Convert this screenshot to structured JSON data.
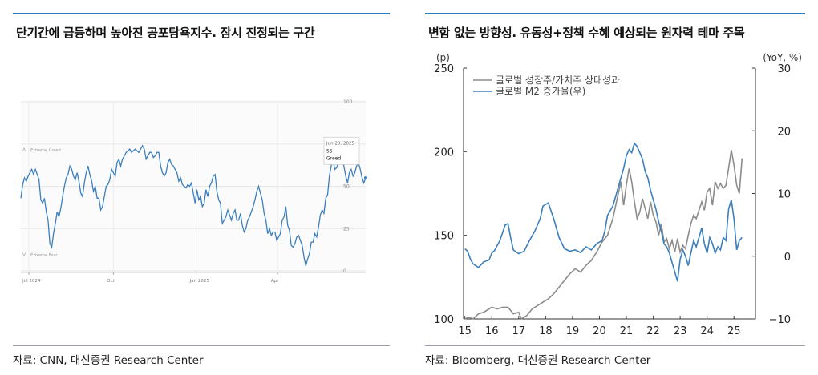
{
  "left": {
    "title": "단기간에 급등하며 높아진 공포탐욕지수. 잠시 진정되는 구간",
    "source": "자료: CNN, 대신증권 Research Center",
    "annotations": {
      "extreme_greed": "Extreme Greed",
      "extreme_fear": "Extreme Fear",
      "tooltip_date": "Jun 20, 2025",
      "tooltip_value": "55",
      "tooltip_label": "Greed"
    }
  },
  "right": {
    "title": "변함 없는 방향성. 유동성+정책 수혜 예상되는 원자력 테마 주목",
    "source": "자료: Bloomberg, 대신증권 Research Center",
    "left_unit": "(p)",
    "right_unit": "(YoY, %)"
  },
  "colors": {
    "blue_line": "#3b7fbf",
    "gray_line": "#8c8c8c",
    "accent_rule": "#2e7bbf"
  },
  "chart_data": [
    {
      "type": "line",
      "x_ticks": [
        "Jul 2024",
        "Oct",
        "Jan 2025",
        "Apr"
      ],
      "y_ticks": [
        "100",
        "75",
        "50",
        "25",
        "0"
      ],
      "ylim": [
        0,
        100
      ],
      "grid": true,
      "series": [
        {
          "values": [
            43,
            51,
            55,
            53,
            56,
            58,
            60,
            57,
            60,
            57,
            54,
            42,
            40,
            43,
            35,
            30,
            16,
            14,
            22,
            28,
            35,
            32,
            37,
            44,
            50,
            55,
            57,
            62,
            60,
            56,
            54,
            58,
            53,
            46,
            44,
            52,
            58,
            62,
            57,
            53,
            47,
            50,
            43,
            43,
            36,
            38,
            44,
            50,
            51,
            54,
            60,
            58,
            56,
            64,
            66,
            62,
            66,
            68,
            70,
            71,
            72,
            70,
            71,
            72,
            71,
            70,
            72,
            74,
            72,
            66,
            68,
            70,
            70,
            67,
            68,
            70,
            70,
            62,
            58,
            56,
            58,
            64,
            66,
            63,
            62,
            60,
            58,
            53,
            55,
            51,
            50,
            49,
            51,
            50,
            52,
            46,
            40,
            48,
            42,
            44,
            38,
            40,
            48,
            44,
            50,
            52,
            56,
            57,
            47,
            42,
            40,
            28,
            30,
            32,
            36,
            33,
            30,
            34,
            36,
            30,
            30,
            34,
            27,
            23,
            25,
            30,
            32,
            35,
            38,
            42,
            47,
            50,
            46,
            42,
            34,
            30,
            22,
            25,
            21,
            23,
            23,
            18,
            20,
            22,
            30,
            32,
            38,
            27,
            24,
            15,
            14,
            16,
            20,
            21,
            18,
            15,
            8,
            3,
            7,
            10,
            17,
            17,
            22,
            20,
            26,
            33,
            36,
            34,
            43,
            45,
            56,
            62,
            65,
            60,
            61,
            64,
            67,
            65,
            62,
            56,
            52,
            58,
            60,
            56,
            58,
            62,
            64,
            60,
            55,
            52,
            55
          ]
        }
      ]
    },
    {
      "type": "line",
      "x": [
        "15",
        "16",
        "17",
        "18",
        "19",
        "20",
        "21",
        "22",
        "23",
        "24",
        "25"
      ],
      "ylim": [
        100,
        250
      ],
      "y_ticks": [
        "250",
        "200",
        "150",
        "100"
      ],
      "y2lim": [
        -10,
        30
      ],
      "y2_ticks": [
        "30",
        "20",
        "10",
        "0",
        "−10"
      ],
      "xlim": [
        15,
        25.5
      ],
      "grid": false,
      "legend": "top-left",
      "series": [
        {
          "name": "글로벌 성장주/가치주 상대성과",
          "axis": "left",
          "points": [
            [
              15.0,
              100
            ],
            [
              15.15,
              101
            ],
            [
              15.3,
              100
            ],
            [
              15.5,
              103
            ],
            [
              15.7,
              104
            ],
            [
              16.0,
              107
            ],
            [
              16.2,
              106
            ],
            [
              16.4,
              107
            ],
            [
              16.6,
              107
            ],
            [
              16.8,
              103
            ],
            [
              17.0,
              104
            ],
            [
              17.1,
              100
            ],
            [
              17.3,
              102
            ],
            [
              17.5,
              106
            ],
            [
              17.7,
              108
            ],
            [
              17.9,
              110
            ],
            [
              18.1,
              112
            ],
            [
              18.3,
              115
            ],
            [
              18.5,
              119
            ],
            [
              18.7,
              123
            ],
            [
              18.9,
              127
            ],
            [
              19.1,
              130
            ],
            [
              19.3,
              128
            ],
            [
              19.5,
              132
            ],
            [
              19.7,
              135
            ],
            [
              19.9,
              140
            ],
            [
              20.1,
              146
            ],
            [
              20.3,
              150
            ],
            [
              20.5,
              160
            ],
            [
              20.7,
              175
            ],
            [
              20.8,
              182
            ],
            [
              20.9,
              168
            ],
            [
              21.0,
              180
            ],
            [
              21.1,
              190
            ],
            [
              21.2,
              182
            ],
            [
              21.3,
              170
            ],
            [
              21.4,
              160
            ],
            [
              21.5,
              164
            ],
            [
              21.6,
              172
            ],
            [
              21.7,
              166
            ],
            [
              21.8,
              160
            ],
            [
              21.9,
              170
            ],
            [
              22.0,
              162
            ],
            [
              22.1,
              158
            ],
            [
              22.2,
              150
            ],
            [
              22.3,
              157
            ],
            [
              22.4,
              146
            ],
            [
              22.5,
              148
            ],
            [
              22.6,
              142
            ],
            [
              22.7,
              147
            ],
            [
              22.8,
              140
            ],
            [
              22.9,
              148
            ],
            [
              23.0,
              140
            ],
            [
              23.1,
              144
            ],
            [
              23.2,
              142
            ],
            [
              23.3,
              150
            ],
            [
              23.4,
              157
            ],
            [
              23.5,
              162
            ],
            [
              23.6,
              160
            ],
            [
              23.7,
              165
            ],
            [
              23.8,
              170
            ],
            [
              23.9,
              165
            ],
            [
              24.0,
              176
            ],
            [
              24.1,
              178
            ],
            [
              24.2,
              168
            ],
            [
              24.3,
              182
            ],
            [
              24.4,
              178
            ],
            [
              24.5,
              181
            ],
            [
              24.6,
              178
            ],
            [
              24.7,
              180
            ],
            [
              24.8,
              190
            ],
            [
              24.9,
              201
            ],
            [
              25.0,
              192
            ],
            [
              25.1,
              180
            ],
            [
              25.2,
              175
            ],
            [
              25.3,
              196
            ]
          ]
        },
        {
          "name": "글로벌 M2 증가율(우)",
          "axis": "right",
          "points": [
            [
              15.0,
              1.2
            ],
            [
              15.1,
              0.8
            ],
            [
              15.2,
              -0.4
            ],
            [
              15.3,
              -1.2
            ],
            [
              15.5,
              -1.8
            ],
            [
              15.7,
              -0.9
            ],
            [
              15.9,
              -0.6
            ],
            [
              16.0,
              0.5
            ],
            [
              16.1,
              0.9
            ],
            [
              16.3,
              2.5
            ],
            [
              16.5,
              5.0
            ],
            [
              16.6,
              5.2
            ],
            [
              16.7,
              3.0
            ],
            [
              16.8,
              1.0
            ],
            [
              17.0,
              0.4
            ],
            [
              17.2,
              0.8
            ],
            [
              17.4,
              2.5
            ],
            [
              17.6,
              4.0
            ],
            [
              17.8,
              6.0
            ],
            [
              17.9,
              8.0
            ],
            [
              18.1,
              8.5
            ],
            [
              18.3,
              6.0
            ],
            [
              18.5,
              3.0
            ],
            [
              18.7,
              1.2
            ],
            [
              18.9,
              0.8
            ],
            [
              19.1,
              1.0
            ],
            [
              19.3,
              0.6
            ],
            [
              19.5,
              1.5
            ],
            [
              19.7,
              1.0
            ],
            [
              19.9,
              2.0
            ],
            [
              20.1,
              2.5
            ],
            [
              20.2,
              4.0
            ],
            [
              20.3,
              6.5
            ],
            [
              20.5,
              8.0
            ],
            [
              20.6,
              9.5
            ],
            [
              20.7,
              11.0
            ],
            [
              20.8,
              12.5
            ],
            [
              20.9,
              14.0
            ],
            [
              21.0,
              16.0
            ],
            [
              21.1,
              17.0
            ],
            [
              21.2,
              16.5
            ],
            [
              21.3,
              18.0
            ],
            [
              21.4,
              17.5
            ],
            [
              21.5,
              16.5
            ],
            [
              21.6,
              15.5
            ],
            [
              21.7,
              13.5
            ],
            [
              21.8,
              12.5
            ],
            [
              21.9,
              10.5
            ],
            [
              22.0,
              9.0
            ],
            [
              22.1,
              7.5
            ],
            [
              22.2,
              5.5
            ],
            [
              22.3,
              4.0
            ],
            [
              22.4,
              2.0
            ],
            [
              22.5,
              1.5
            ],
            [
              22.6,
              0.5
            ],
            [
              22.7,
              -1.0
            ],
            [
              22.8,
              -2.5
            ],
            [
              22.9,
              -4.0
            ],
            [
              23.0,
              -0.5
            ],
            [
              23.1,
              1.0
            ],
            [
              23.2,
              0.0
            ],
            [
              23.3,
              -1.5
            ],
            [
              23.4,
              0.5
            ],
            [
              23.5,
              2.5
            ],
            [
              23.6,
              1.5
            ],
            [
              23.7,
              3.0
            ],
            [
              23.8,
              4.5
            ],
            [
              23.9,
              2.0
            ],
            [
              24.0,
              0.5
            ],
            [
              24.1,
              3.0
            ],
            [
              24.2,
              2.0
            ],
            [
              24.3,
              0.5
            ],
            [
              24.4,
              1.5
            ],
            [
              24.5,
              1.0
            ],
            [
              24.6,
              3.0
            ],
            [
              24.7,
              2.5
            ],
            [
              24.8,
              7.5
            ],
            [
              24.9,
              9.0
            ],
            [
              25.0,
              6.0
            ],
            [
              25.1,
              1.0
            ],
            [
              25.2,
              2.5
            ],
            [
              25.3,
              3.0
            ]
          ]
        }
      ]
    }
  ]
}
